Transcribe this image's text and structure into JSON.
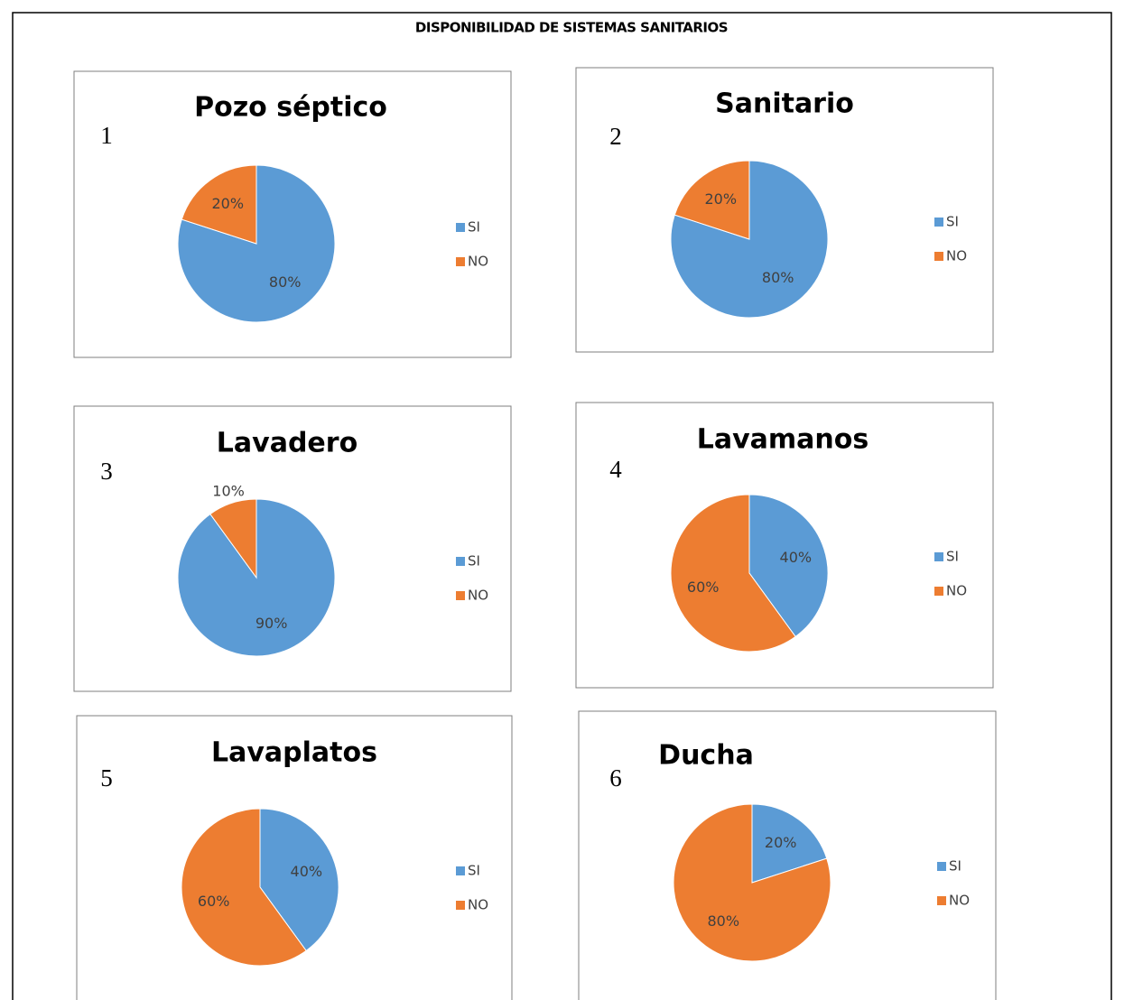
{
  "title": "DISPONIBILIDAD DE SISTEMAS SANITARIOS",
  "chart_data": [
    {
      "type": "pie",
      "title": "Pozo séptico",
      "annotation": "1",
      "categories": [
        "SI",
        "NO"
      ],
      "values": [
        80,
        20
      ],
      "value_labels": [
        "80%",
        "20%"
      ],
      "colors": [
        "#5b9bd5",
        "#ed7d31"
      ],
      "legend": "right"
    },
    {
      "type": "pie",
      "title": "Sanitario",
      "annotation": "2",
      "categories": [
        "SI",
        "NO"
      ],
      "values": [
        80,
        20
      ],
      "value_labels": [
        "80%",
        "20%"
      ],
      "colors": [
        "#5b9bd5",
        "#ed7d31"
      ],
      "legend": "right"
    },
    {
      "type": "pie",
      "title": "Lavadero",
      "annotation": "3",
      "categories": [
        "SI",
        "NO"
      ],
      "values": [
        90,
        10
      ],
      "value_labels": [
        "90%",
        "10%"
      ],
      "colors": [
        "#5b9bd5",
        "#ed7d31"
      ],
      "legend": "right"
    },
    {
      "type": "pie",
      "title": "Lavamanos",
      "annotation": "4",
      "categories": [
        "SI",
        "NO"
      ],
      "values": [
        40,
        60
      ],
      "value_labels": [
        "40%",
        "60%"
      ],
      "colors": [
        "#5b9bd5",
        "#ed7d31"
      ],
      "legend": "right"
    },
    {
      "type": "pie",
      "title": "Lavaplatos",
      "annotation": "5",
      "categories": [
        "SI",
        "NO"
      ],
      "values": [
        40,
        60
      ],
      "value_labels": [
        "40%",
        "60%"
      ],
      "colors": [
        "#5b9bd5",
        "#ed7d31"
      ],
      "legend": "right"
    },
    {
      "type": "pie",
      "title": "Ducha",
      "annotation": "6",
      "categories": [
        "SI",
        "NO"
      ],
      "values": [
        20,
        80
      ],
      "value_labels": [
        "20%",
        "80%"
      ],
      "colors": [
        "#5b9bd5",
        "#ed7d31"
      ],
      "legend": "right"
    }
  ]
}
